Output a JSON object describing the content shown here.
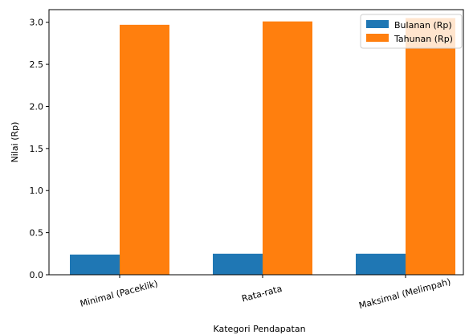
{
  "chart_data": {
    "type": "bar",
    "categories": [
      "Minimal (Paceklik)",
      "Rata-rata",
      "Maksimal (Melimpah)"
    ],
    "series": [
      {
        "name": "Bulanan (Rp)",
        "values": [
          0.24,
          0.25,
          0.25
        ],
        "color": "#1f77b4"
      },
      {
        "name": "Tahunan (Rp)",
        "values": [
          2.97,
          3.01,
          3.05
        ],
        "color": "#ff7f0e"
      }
    ],
    "xlabel": "Kategori Pendapatan",
    "ylabel": "Nilai (Rp)",
    "ylim": [
      0,
      3.15
    ],
    "yticks": [
      "0.0",
      "0.5",
      "1.0",
      "1.5",
      "2.0",
      "2.5",
      "3.0"
    ],
    "grid": false,
    "legend_position": "top-right"
  }
}
